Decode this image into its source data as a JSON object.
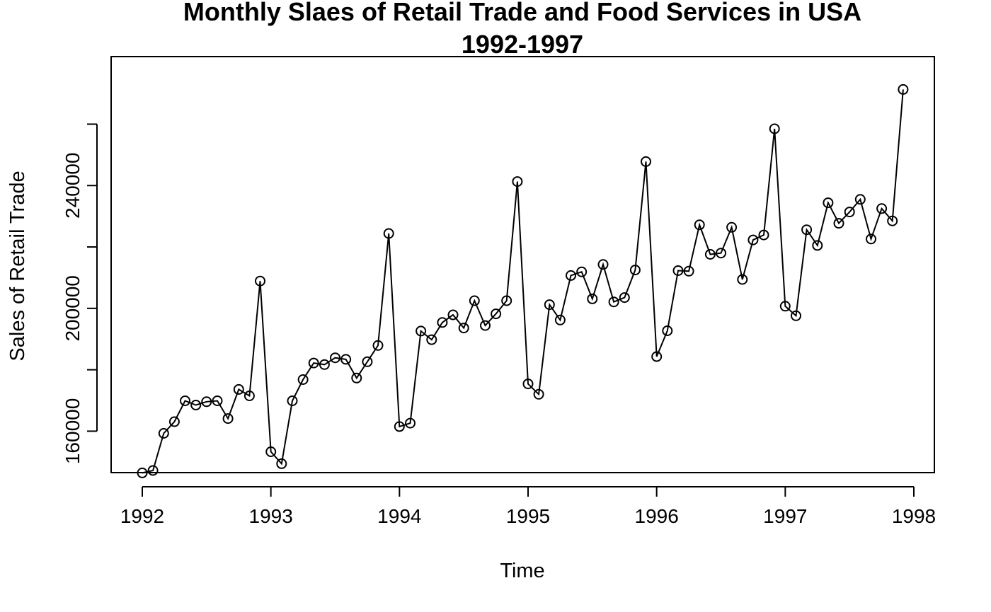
{
  "chart_data": {
    "type": "line",
    "title": "Monthly Slaes of Retail Trade and Food Services in USA",
    "subtitle": "1992-1997",
    "xlabel": "Time",
    "ylabel": "Sales of Retail Trade",
    "xlim": [
      1992,
      1998
    ],
    "ylim": [
      146500,
      282000
    ],
    "x_ticks": [
      1992,
      1993,
      1994,
      1995,
      1996,
      1997,
      1998
    ],
    "y_ticks": [
      160000,
      200000,
      240000
    ],
    "y_tick_labels": [
      "160000",
      "200000",
      "240000"
    ],
    "y_minor_ticks": [
      180000,
      220000,
      260000
    ],
    "grid": false,
    "legend": "none",
    "marker": "open-circle",
    "series": [
      {
        "x": [
          1992.0,
          1992.0833,
          1992.1667,
          1992.25,
          1992.3333,
          1992.4167,
          1992.5,
          1992.5833,
          1992.6667,
          1992.75,
          1992.8333,
          1992.9167,
          1993.0,
          1993.0833,
          1993.1667,
          1993.25,
          1993.3333,
          1993.4167,
          1993.5,
          1993.5833,
          1993.6667,
          1993.75,
          1993.8333,
          1993.9167,
          1994.0,
          1994.0833,
          1994.1667,
          1994.25,
          1994.3333,
          1994.4167,
          1994.5,
          1994.5833,
          1994.6667,
          1994.75,
          1994.8333,
          1994.9167,
          1995.0,
          1995.0833,
          1995.1667,
          1995.25,
          1995.3333,
          1995.4167,
          1995.5,
          1995.5833,
          1995.6667,
          1995.75,
          1995.8333,
          1995.9167,
          1996.0,
          1996.0833,
          1996.1667,
          1996.25,
          1996.3333,
          1996.4167,
          1996.5,
          1996.5833,
          1996.6667,
          1996.75,
          1996.8333,
          1996.9167,
          1997.0,
          1997.0833,
          1997.1667,
          1997.25,
          1997.3333,
          1997.4167,
          1997.5,
          1997.5833,
          1997.6667,
          1997.75,
          1997.8333,
          1997.9167
        ],
        "y": [
          146400,
          147200,
          159300,
          163100,
          169900,
          168500,
          169600,
          169900,
          164100,
          173600,
          171500,
          208900,
          153300,
          149400,
          169900,
          176800,
          182200,
          181700,
          183900,
          183400,
          177300,
          182600,
          187900,
          224400,
          161500,
          162600,
          192600,
          189800,
          195400,
          197900,
          193600,
          202500,
          194400,
          198200,
          202500,
          241300,
          175400,
          172000,
          201200,
          196200,
          210700,
          211900,
          203100,
          214300,
          202100,
          203500,
          212500,
          247800,
          184300,
          192700,
          212300,
          212100,
          227200,
          217600,
          218000,
          226400,
          209400,
          222300,
          223900,
          258500,
          200700,
          197600,
          225600,
          220500,
          234400,
          227700,
          231400,
          235500,
          222600,
          232500,
          228500,
          271300
        ]
      }
    ]
  }
}
